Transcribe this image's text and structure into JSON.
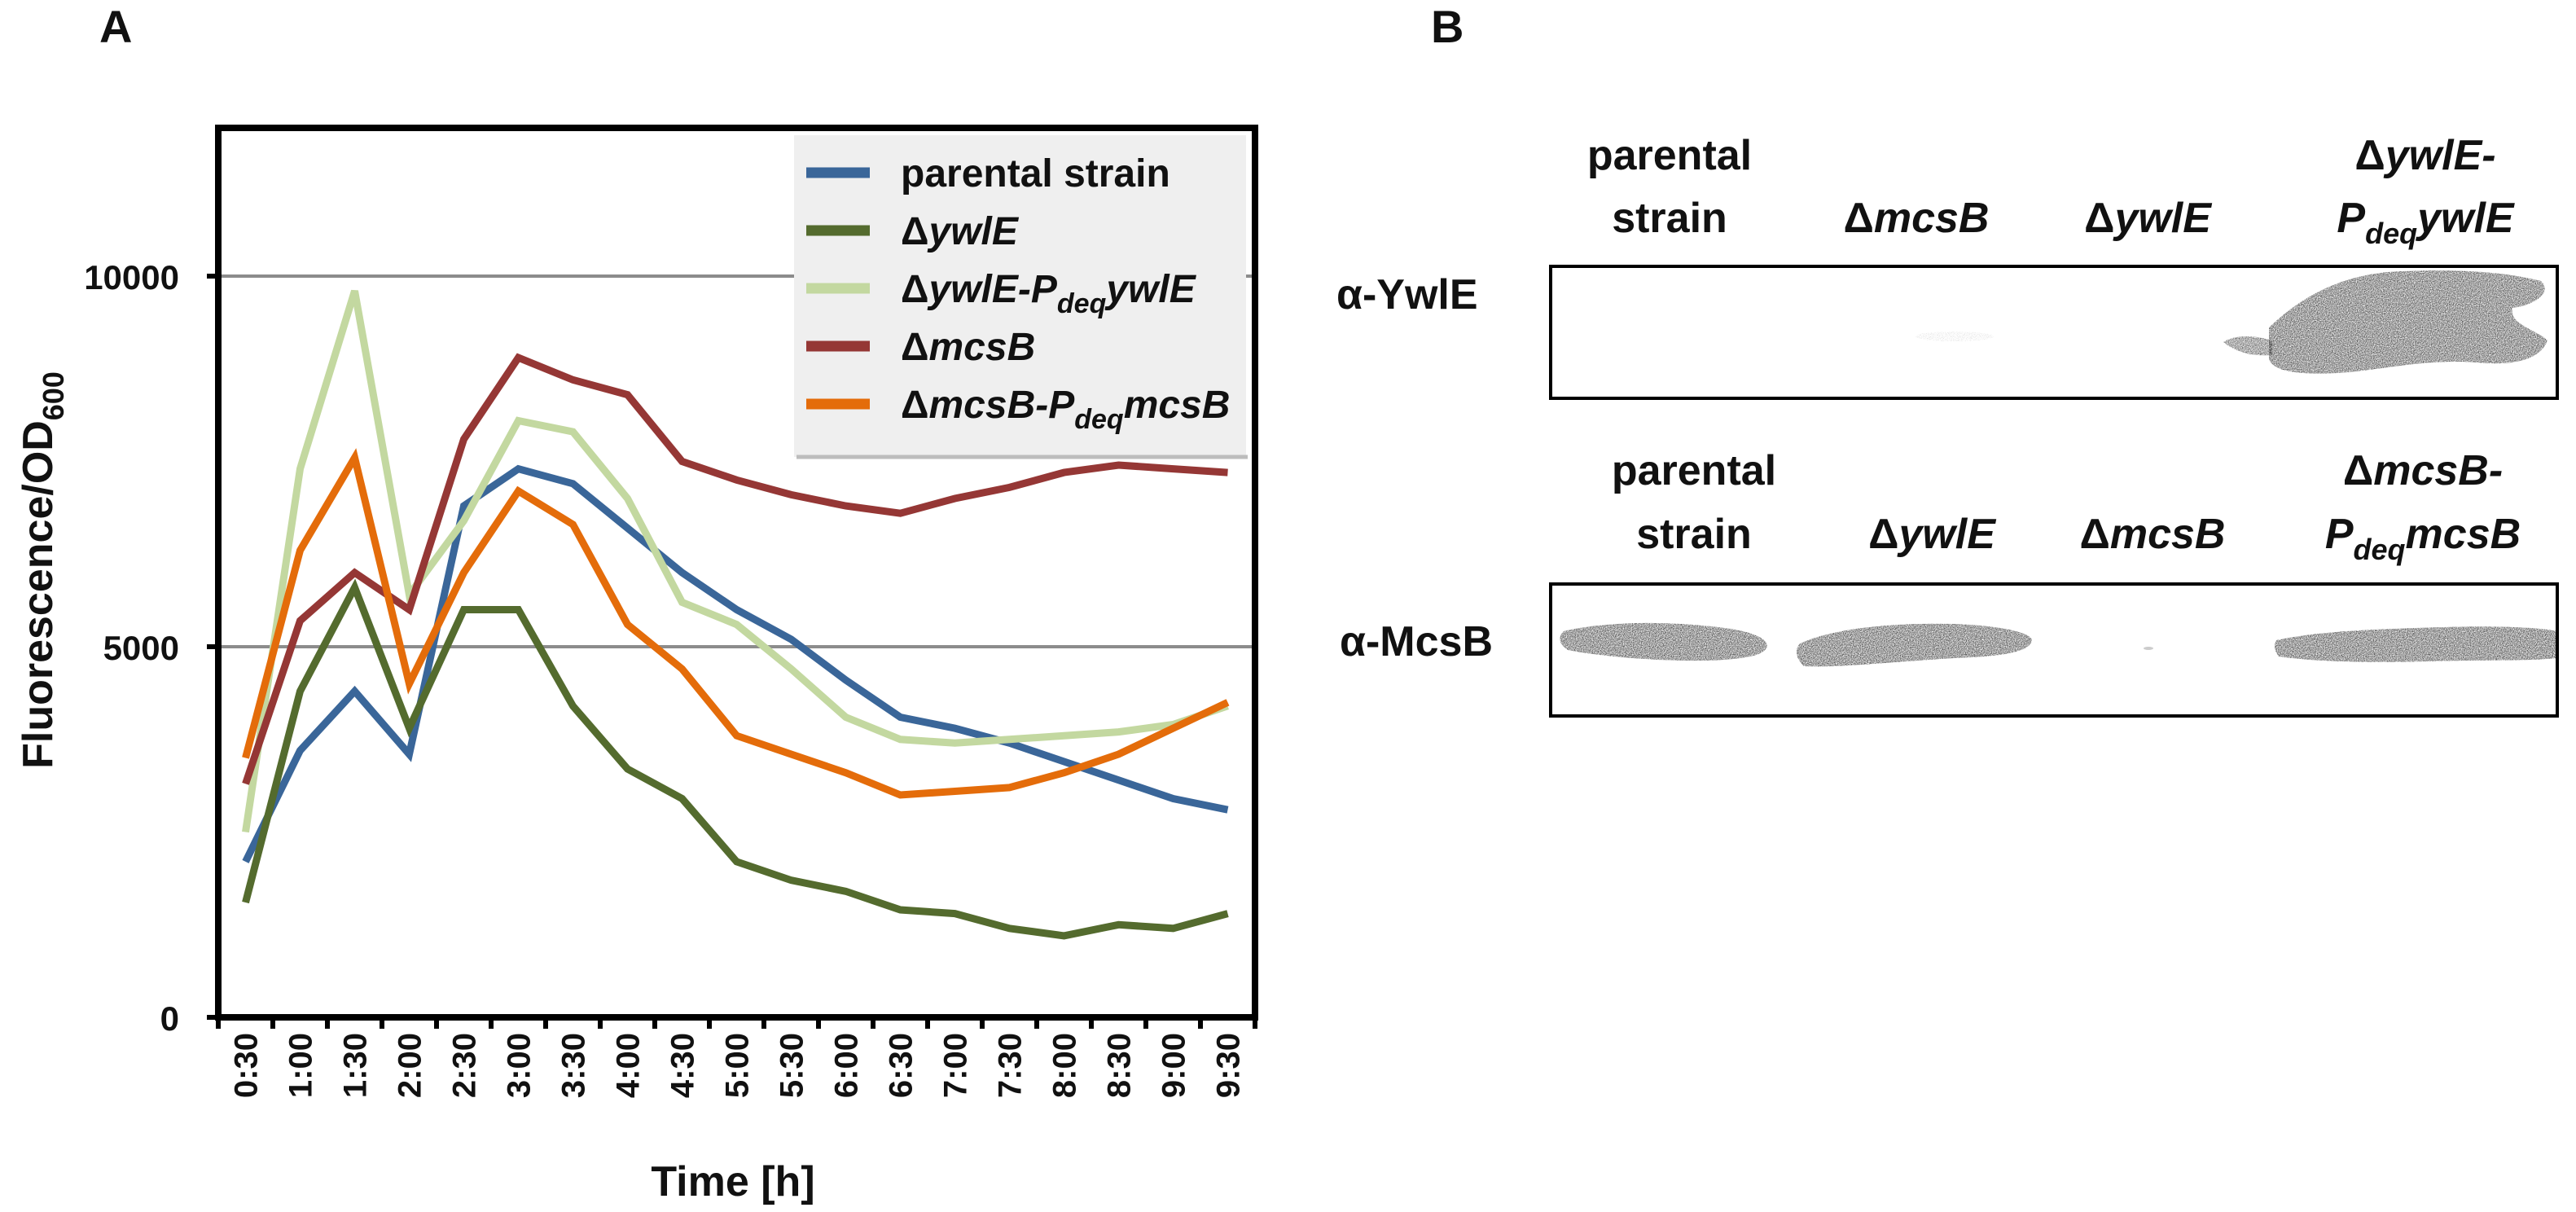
{
  "chart_data": {
    "panel_label": "A",
    "type": "line",
    "title": "",
    "xlabel": "Time [h]",
    "ylabel_main": "Fluorescence/OD",
    "ylabel_sub": "600",
    "ylim": [
      0,
      12000
    ],
    "yticks": [
      "0",
      "5000",
      "10000"
    ],
    "ytick_values": [
      0,
      5000,
      10000
    ],
    "grid": true,
    "legend_position": "top-right",
    "categories": [
      "0:30",
      "1:00",
      "1:30",
      "2:00",
      "2:30",
      "3:00",
      "3:30",
      "4:00",
      "4:30",
      "5:00",
      "5:30",
      "6:00",
      "6:30",
      "7:00",
      "7:30",
      "8:00",
      "8:30",
      "9:00",
      "9:30"
    ],
    "series": [
      {
        "name": "parental strain",
        "color": "#3a6699",
        "values": [
          2100,
          3600,
          4400,
          3550,
          6900,
          7400,
          7200,
          6600,
          6000,
          5500,
          5100,
          4550,
          4050,
          3900,
          3700,
          3450,
          3200,
          2950,
          2800
        ]
      },
      {
        "name": "ΔywlE",
        "color": "#546b2e",
        "values": [
          1550,
          4400,
          5800,
          3900,
          5500,
          5500,
          4200,
          3350,
          2950,
          2100,
          1850,
          1700,
          1450,
          1400,
          1200,
          1100,
          1250,
          1200,
          1400
        ]
      },
      {
        "name": "ΔywlE-PdeqywlE",
        "color": "#c3d8a0",
        "values": [
          2500,
          7400,
          9800,
          5700,
          6700,
          8050,
          7900,
          7000,
          5600,
          5300,
          4700,
          4050,
          3750,
          3700,
          3750,
          3800,
          3850,
          3950,
          4200
        ]
      },
      {
        "name": "ΔmcsB",
        "color": "#953735",
        "values": [
          3150,
          5350,
          6000,
          5500,
          7800,
          8900,
          8600,
          8400,
          7500,
          7250,
          7050,
          6900,
          6800,
          7000,
          7150,
          7350,
          7450,
          7400,
          7350
        ]
      },
      {
        "name": "ΔmcsB-PdeqmcsB",
        "color": "#e46c0a",
        "values": [
          3500,
          6300,
          7550,
          4500,
          6000,
          7100,
          6650,
          5300,
          4700,
          3800,
          3550,
          3300,
          3000,
          3050,
          3100,
          3300,
          3550,
          3900,
          4250
        ]
      }
    ],
    "legend_entries": [
      {
        "prefix": "parental strain",
        "sub": "",
        "suffix": ""
      },
      {
        "prefix": "Δ",
        "italic": "ywlE",
        "sub": "",
        "suffix": ""
      },
      {
        "prefix": "Δ",
        "italic": "ywlE-P",
        "sub": "deq",
        "suffix": "ywlE"
      },
      {
        "prefix": "Δ",
        "italic": "mcsB",
        "sub": "",
        "suffix": ""
      },
      {
        "prefix": "Δ",
        "italic": "mcsB-P",
        "sub": "deq",
        "suffix": "mcsB"
      }
    ]
  },
  "blot": {
    "panel_label": "B",
    "ywle": {
      "antibody": "α-YwlE",
      "lanes": [
        {
          "line1": "parental",
          "line2": "strain"
        },
        {
          "line1": "Δ",
          "line1_italic": "mcsB"
        },
        {
          "line1": "Δ",
          "line1_italic": "ywlE"
        },
        {
          "line1": "Δ",
          "line1_italic": "ywlE-",
          "line2_italic_pre": "P",
          "line2_sub": "deq",
          "line2_italic": "ywlE"
        }
      ]
    },
    "mcsb": {
      "antibody": "α-McsB",
      "lanes": [
        {
          "line1": "parental",
          "line2": "strain"
        },
        {
          "line1": "Δ",
          "line1_italic": "ywlE"
        },
        {
          "line1": "Δ",
          "line1_italic": "mcsB"
        },
        {
          "line1": "Δ",
          "line1_italic": "mcsB-",
          "line2_italic_pre": "P",
          "line2_sub": "deq",
          "line2_italic": "mcsB"
        }
      ]
    }
  }
}
